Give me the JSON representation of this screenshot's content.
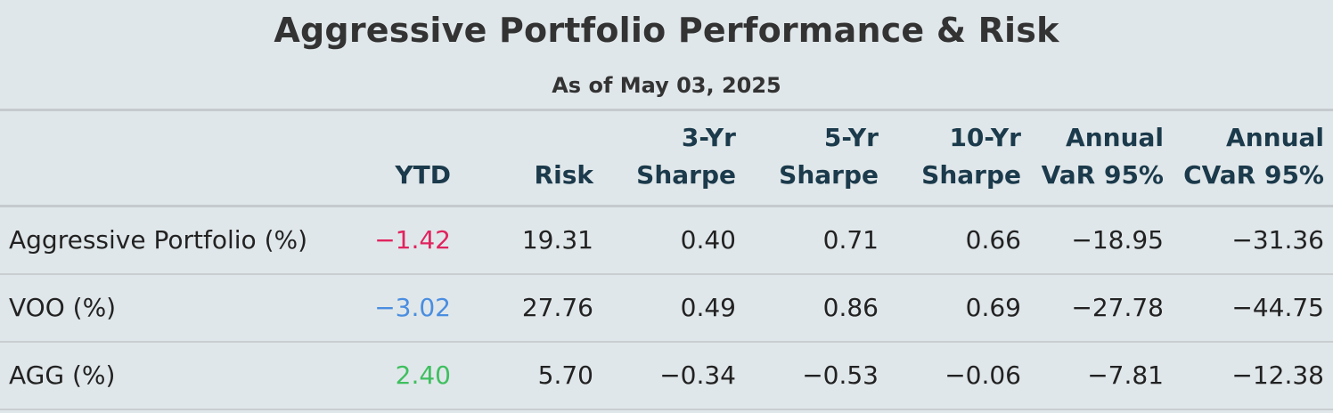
{
  "chart_data": {
    "type": "table",
    "title": "Aggressive Portfolio Performance & Risk",
    "subtitle": "As of May 03, 2025",
    "columns": [
      {
        "label_lines": [
          "",
          "YTD"
        ]
      },
      {
        "label_lines": [
          "",
          "Risk"
        ]
      },
      {
        "label_lines": [
          "3-Yr",
          "Sharpe"
        ]
      },
      {
        "label_lines": [
          "5-Yr",
          "Sharpe"
        ]
      },
      {
        "label_lines": [
          "10-Yr",
          "Sharpe"
        ]
      },
      {
        "label_lines": [
          "Annual",
          "VaR 95%"
        ]
      },
      {
        "label_lines": [
          "Annual",
          "CVaR 95%"
        ]
      }
    ],
    "rows": [
      {
        "label": "Aggressive Portfolio (%)",
        "ytd_color": "#e0245e",
        "values": [
          "−1.42",
          "19.31",
          "0.40",
          "0.71",
          "0.66",
          "−18.95",
          "−31.36"
        ]
      },
      {
        "label": "VOO (%)",
        "ytd_color": "#4a8ee0",
        "values": [
          "−3.02",
          "27.76",
          "0.49",
          "0.86",
          "0.69",
          "−27.78",
          "−44.75"
        ]
      },
      {
        "label": "AGG (%)",
        "ytd_color": "#3fbf5f",
        "values": [
          "2.40",
          "5.70",
          "−0.34",
          "−0.53",
          "−0.06",
          "−7.81",
          "−12.38"
        ]
      }
    ]
  }
}
